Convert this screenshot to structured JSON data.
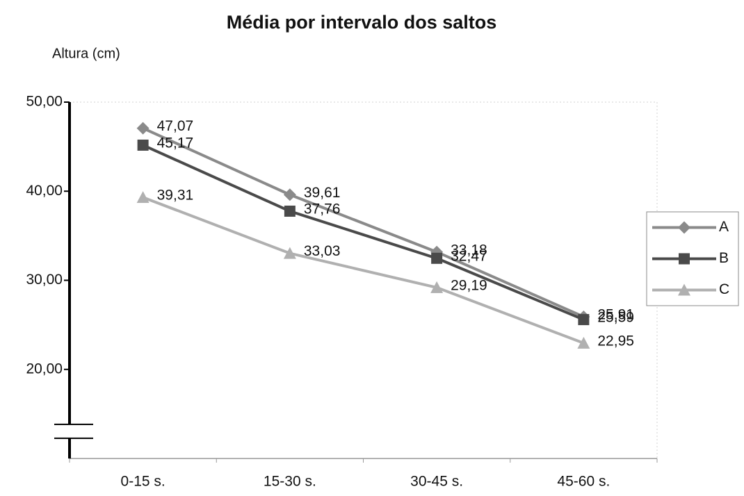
{
  "chart_data": {
    "type": "line",
    "title": "Média por intervalo dos saltos",
    "y_label": "Altura (cm)",
    "categories": [
      "0-15 s.",
      "15-30 s.",
      "30-45 s.",
      "45-60 s."
    ],
    "series": [
      {
        "name": "A",
        "color": "#8a8a8a",
        "marker": "diamond",
        "values": [
          47.07,
          39.61,
          33.18,
          25.91
        ],
        "value_labels": [
          "47,07",
          "39,61",
          "33,18",
          "25,91"
        ]
      },
      {
        "name": "B",
        "color": "#4a4a4a",
        "marker": "square",
        "values": [
          45.17,
          37.76,
          32.47,
          25.59
        ],
        "value_labels": [
          "45,17",
          "37,76",
          "32,47",
          "25,59"
        ]
      },
      {
        "name": "C",
        "color": "#b0b0b0",
        "marker": "triangle",
        "values": [
          39.31,
          33.03,
          29.19,
          22.95
        ],
        "value_labels": [
          "39,31",
          "33,03",
          "29,19",
          "22,95"
        ]
      }
    ],
    "ylim": [
      10,
      50
    ],
    "yticks": [
      {
        "value": 20,
        "label": "20,00"
      },
      {
        "value": 30,
        "label": "30,00"
      },
      {
        "value": 40,
        "label": "40,00"
      },
      {
        "value": 50,
        "label": "50,00"
      }
    ],
    "legend": "right",
    "axis_break": true
  }
}
